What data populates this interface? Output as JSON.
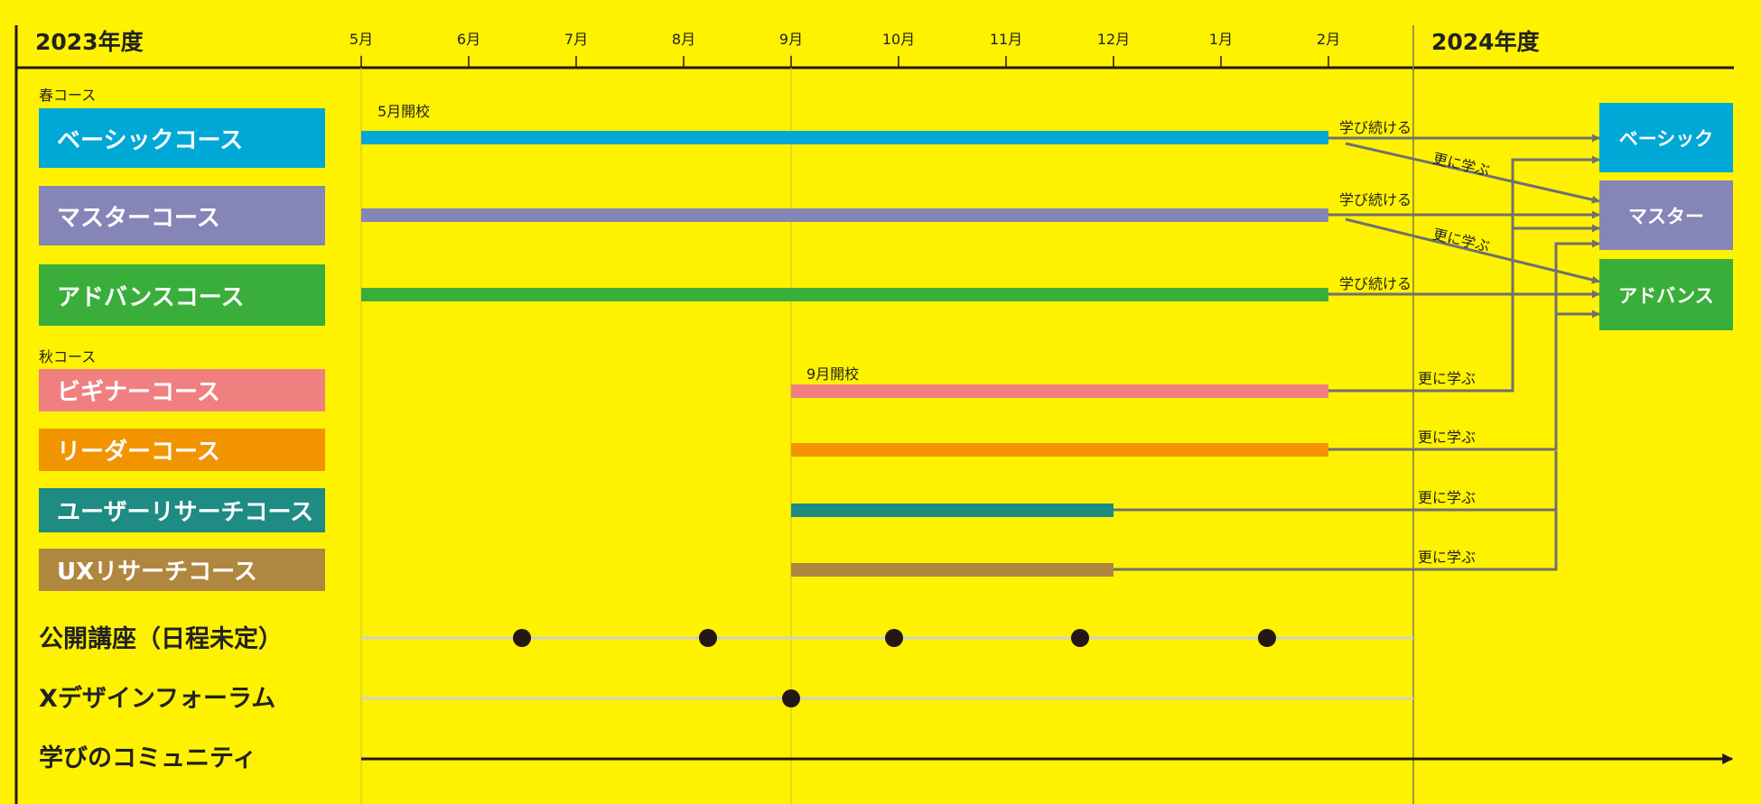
{
  "header": {
    "year_start": "2023年度",
    "year_end": "2024年度",
    "months": [
      "5月",
      "6月",
      "7月",
      "8月",
      "9月",
      "10月",
      "11月",
      "12月",
      "1月",
      "2月"
    ]
  },
  "spring": {
    "label": "春コース",
    "open_note": "5月開校",
    "courses": [
      {
        "name": "ベーシックコース",
        "color": "#00A8D6"
      },
      {
        "name": "マスターコース",
        "color": "#8585B8"
      },
      {
        "name": "アドバンスコース",
        "color": "#3AAE3A"
      }
    ]
  },
  "autumn": {
    "label": "秋コース",
    "open_note": "9月開校",
    "courses": [
      {
        "name": "ビギナーコース",
        "color": "#F08080"
      },
      {
        "name": "リーダーコース",
        "color": "#F29400"
      },
      {
        "name": "ユーザーリサーチコース",
        "color": "#1E8C82"
      },
      {
        "name": "UXリサーチコース",
        "color": "#B0873F"
      }
    ]
  },
  "destinations": [
    {
      "name": "ベーシック",
      "color": "#00A8D6"
    },
    {
      "name": "マスター",
      "color": "#8585B8"
    },
    {
      "name": "アドバンス",
      "color": "#3AAE3A"
    }
  ],
  "transitions": {
    "continue": "学び続ける",
    "further": "更に学ぶ"
  },
  "events": {
    "public_lecture": "公開講座（日程未定）",
    "forum": "Xデザインフォーラム",
    "community": "学びのコミュニティ"
  },
  "colors": {
    "background": "#FFF200",
    "flow_line": "#707070",
    "event_line": "#D0D0D0",
    "dot": "#231815"
  }
}
